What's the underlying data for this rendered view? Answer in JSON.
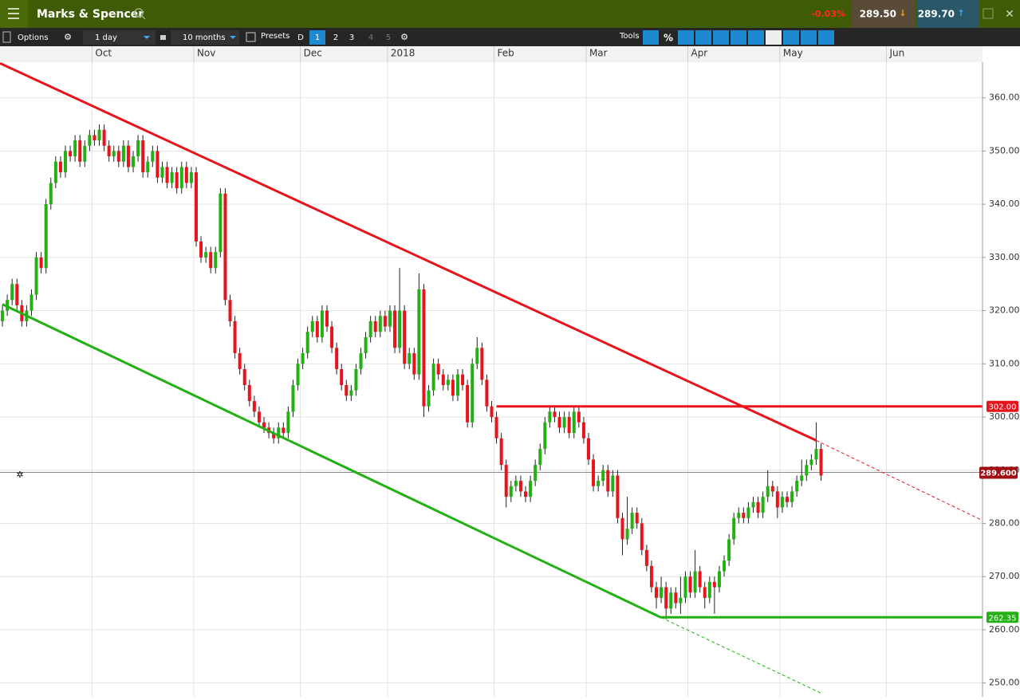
{
  "header": {
    "title": "Marks & Spencer",
    "change": "-0.03%",
    "sell": "289.50",
    "buy": "289.70"
  },
  "toolbar": {
    "options": "Options",
    "interval": "1 day",
    "range": "10 months",
    "presets": "Presets",
    "preset_buttons": [
      "D",
      "1",
      "2",
      "3",
      "4",
      "5"
    ],
    "tools": "Tools",
    "percent": "%"
  },
  "chart_data": {
    "type": "candlestick",
    "categories": [
      null,
      null,
      null,
      null,
      null,
      null,
      null,
      null,
      null,
      null,
      null,
      null,
      null,
      null,
      null,
      null,
      null,
      null,
      null,
      "Oct",
      null,
      null,
      null,
      null,
      null,
      null,
      null,
      null,
      null,
      null,
      null,
      null,
      null,
      null,
      null,
      null,
      null,
      null,
      null,
      null,
      "Nov",
      null,
      null,
      null,
      null,
      null,
      null,
      null,
      null,
      null,
      null,
      null,
      null,
      null,
      null,
      null,
      null,
      null,
      null,
      null,
      null,
      null,
      "Dec",
      null,
      null,
      null,
      null,
      null,
      null,
      null,
      null,
      null,
      null,
      null,
      null,
      null,
      null,
      null,
      null,
      null,
      "2018",
      null,
      null,
      null,
      null,
      null,
      null,
      null,
      null,
      null,
      null,
      null,
      null,
      null,
      null,
      null,
      null,
      null,
      null,
      null,
      null,
      null,
      "Feb",
      null,
      null,
      null,
      null,
      null,
      null,
      null,
      null,
      null,
      null,
      null,
      null,
      null,
      null,
      null,
      null,
      null,
      null,
      "Mar",
      null,
      null,
      null,
      null,
      null,
      null,
      null,
      null,
      null,
      null,
      null,
      null,
      null,
      null,
      null,
      null,
      null,
      null,
      null,
      null,
      "Apr",
      null,
      null,
      null,
      null,
      null,
      null,
      null,
      null,
      null,
      null,
      null,
      null,
      null,
      null,
      null,
      null,
      null,
      null,
      "May",
      null,
      null,
      null,
      null,
      null,
      null,
      null,
      null,
      null,
      null,
      null,
      null,
      null,
      null,
      null,
      null,
      null,
      null,
      null,
      null,
      null,
      "Jun"
    ],
    "open": [
      318,
      320,
      322,
      325,
      321,
      318,
      320,
      323,
      330,
      328,
      340,
      344,
      348,
      346,
      350,
      349,
      352,
      348,
      351,
      353,
      352,
      354,
      351,
      349,
      350,
      348,
      351,
      347,
      349,
      352,
      346,
      348,
      350,
      345,
      347,
      344,
      346,
      343,
      347,
      344,
      346,
      333,
      330,
      331,
      328,
      331,
      342,
      322,
      318,
      312,
      309,
      306,
      303,
      301,
      299,
      298,
      297,
      296,
      298,
      297,
      301,
      306,
      310,
      312,
      316,
      318,
      315,
      320,
      317,
      313,
      309,
      306,
      304,
      305,
      309,
      312,
      315,
      318,
      316,
      319,
      317,
      320,
      313,
      320,
      310,
      312,
      308,
      324,
      302,
      305,
      310,
      308,
      306,
      307,
      304,
      308,
      306,
      299,
      310,
      313,
      307,
      302,
      300,
      296,
      291,
      285,
      287,
      288,
      286,
      285,
      288,
      291,
      294,
      299,
      301,
      300,
      298,
      300,
      297,
      301,
      299,
      296,
      292,
      287,
      288,
      290,
      286,
      289,
      281,
      277,
      279,
      282,
      280,
      275,
      272,
      268,
      266,
      268,
      264,
      267,
      265,
      266,
      270,
      267,
      271,
      268,
      266,
      269,
      268,
      271,
      273,
      277,
      281,
      282,
      281,
      283,
      284,
      282,
      285,
      287,
      286,
      283,
      285,
      284,
      286,
      288,
      289,
      291,
      292,
      294,
      null,
      null,
      null,
      null,
      null,
      null,
      null,
      null,
      null,
      null,
      null,
      null,
      null,
      null
    ],
    "high": [
      321,
      323,
      326,
      326,
      322,
      321,
      324,
      331,
      331,
      341,
      345,
      349,
      349,
      351,
      351,
      353,
      353,
      352,
      354,
      354,
      355,
      355,
      352,
      351,
      351,
      352,
      352,
      350,
      353,
      353,
      349,
      351,
      351,
      348,
      348,
      347,
      347,
      348,
      348,
      347,
      347,
      334,
      332,
      332,
      332,
      343,
      343,
      323,
      319,
      313,
      310,
      307,
      304,
      302,
      300,
      299,
      298,
      299,
      299,
      302,
      307,
      311,
      313,
      317,
      319,
      319,
      321,
      321,
      318,
      314,
      310,
      307,
      306,
      310,
      313,
      316,
      319,
      319,
      320,
      320,
      321,
      321,
      328,
      321,
      313,
      313,
      327,
      325,
      306,
      311,
      311,
      309,
      308,
      308,
      309,
      309,
      307,
      311,
      315,
      314,
      308,
      303,
      301,
      297,
      292,
      288,
      289,
      289,
      287,
      289,
      292,
      295,
      300,
      302,
      302,
      301,
      301,
      301,
      302,
      302,
      300,
      297,
      293,
      289,
      291,
      291,
      290,
      290,
      282,
      285,
      283,
      283,
      281,
      276,
      273,
      269,
      270,
      269,
      268,
      268,
      270,
      271,
      271,
      275,
      272,
      269,
      270,
      270,
      272,
      274,
      278,
      282,
      283,
      283,
      284,
      285,
      285,
      286,
      290,
      288,
      287,
      286,
      286,
      287,
      289,
      292,
      292,
      293,
      299,
      295,
      null,
      null,
      null,
      null,
      null,
      null,
      null,
      null,
      null,
      null,
      null,
      null,
      null,
      null
    ],
    "low": [
      317,
      319,
      321,
      320,
      317,
      317,
      319,
      322,
      327,
      327,
      339,
      343,
      345,
      345,
      348,
      348,
      347,
      347,
      350,
      351,
      351,
      350,
      348,
      348,
      347,
      347,
      346,
      346,
      348,
      345,
      345,
      347,
      344,
      344,
      343,
      343,
      342,
      342,
      343,
      343,
      332,
      329,
      329,
      327,
      327,
      330,
      321,
      317,
      311,
      308,
      305,
      302,
      300,
      298,
      297,
      296,
      295,
      295,
      296,
      296,
      300,
      305,
      309,
      311,
      315,
      314,
      314,
      316,
      312,
      308,
      305,
      303,
      303,
      304,
      308,
      311,
      314,
      315,
      315,
      316,
      316,
      312,
      312,
      309,
      309,
      307,
      307,
      300,
      301,
      304,
      307,
      305,
      305,
      303,
      303,
      305,
      298,
      298,
      309,
      306,
      301,
      299,
      295,
      290,
      283,
      284,
      286,
      285,
      284,
      284,
      287,
      290,
      293,
      298,
      299,
      297,
      297,
      296,
      296,
      298,
      295,
      291,
      286,
      286,
      287,
      285,
      285,
      280,
      274,
      276,
      278,
      279,
      274,
      271,
      267,
      264,
      265,
      262,
      263,
      264,
      263,
      265,
      266,
      266,
      267,
      264,
      265,
      263,
      267,
      270,
      272,
      276,
      280,
      280,
      280,
      282,
      281,
      281,
      284,
      285,
      281,
      282,
      283,
      283,
      285,
      287,
      288,
      290,
      291,
      288,
      null,
      null,
      null,
      null,
      null,
      null,
      null,
      null,
      null,
      null,
      null,
      null,
      null,
      null
    ],
    "close": [
      320,
      322,
      325,
      321,
      318,
      320,
      323,
      330,
      328,
      340,
      344,
      348,
      346,
      350,
      349,
      352,
      348,
      351,
      353,
      352,
      354,
      351,
      349,
      350,
      348,
      351,
      347,
      349,
      352,
      346,
      348,
      350,
      345,
      347,
      344,
      346,
      343,
      347,
      344,
      346,
      333,
      330,
      331,
      328,
      331,
      342,
      322,
      318,
      312,
      309,
      306,
      303,
      301,
      299,
      298,
      297,
      296,
      298,
      297,
      301,
      306,
      310,
      312,
      316,
      318,
      315,
      320,
      317,
      313,
      309,
      306,
      304,
      305,
      309,
      312,
      315,
      318,
      316,
      319,
      317,
      320,
      313,
      320,
      310,
      312,
      308,
      324,
      302,
      305,
      310,
      308,
      306,
      307,
      304,
      308,
      306,
      299,
      310,
      313,
      307,
      302,
      300,
      296,
      291,
      285,
      287,
      288,
      286,
      285,
      288,
      291,
      294,
      299,
      301,
      300,
      298,
      300,
      297,
      301,
      299,
      296,
      292,
      287,
      288,
      290,
      286,
      289,
      281,
      277,
      279,
      282,
      280,
      275,
      272,
      268,
      266,
      268,
      264,
      267,
      265,
      266,
      270,
      267,
      271,
      268,
      266,
      269,
      268,
      271,
      273,
      277,
      281,
      282,
      281,
      283,
      284,
      282,
      285,
      287,
      286,
      283,
      285,
      284,
      286,
      288,
      289,
      291,
      292,
      294,
      289,
      null,
      null,
      null,
      null,
      null,
      null,
      null,
      null,
      null,
      null,
      null,
      null,
      null,
      null
    ],
    "up_color": "#22b014",
    "down_color": "#e8141c",
    "xlim": [
      -0.5,
      202.5
    ],
    "ylim": [
      248,
      369.7
    ],
    "yticks": [
      {
        "value": 250,
        "label": "250.00"
      },
      {
        "value": 260,
        "label": "260.00"
      },
      {
        "value": 270,
        "label": "270.00"
      },
      {
        "value": 280,
        "label": "280.00"
      },
      {
        "value": 290,
        "label": "290.00"
      },
      {
        "value": 300,
        "label": "300.00"
      },
      {
        "value": 310,
        "label": "310.00"
      },
      {
        "value": 320,
        "label": "320.00"
      },
      {
        "value": 330,
        "label": "330.00"
      },
      {
        "value": 340,
        "label": "340.00"
      },
      {
        "value": 350,
        "label": "350.00"
      },
      {
        "value": 360,
        "label": "360.00"
      }
    ],
    "grid": true,
    "trendlines": [
      {
        "color": "#e8141c",
        "x": [
          -0.5,
          168,
          202
        ],
        "y": [
          366.5,
          295.6,
          280.7
        ]
      },
      {
        "color": "#22b014",
        "x": [
          0,
          136,
          169
        ],
        "y": [
          321.2,
          262.3,
          248.1
        ]
      }
    ],
    "levels": [
      {
        "value": 302,
        "label": "302.00",
        "color": "#e8141c",
        "from": 102
      },
      {
        "value": 262.35,
        "label": "262.35",
        "color": "#22b014",
        "from": 136
      }
    ],
    "current": {
      "value": 289.6,
      "label": "289.600",
      "color": "#a00d12"
    }
  }
}
